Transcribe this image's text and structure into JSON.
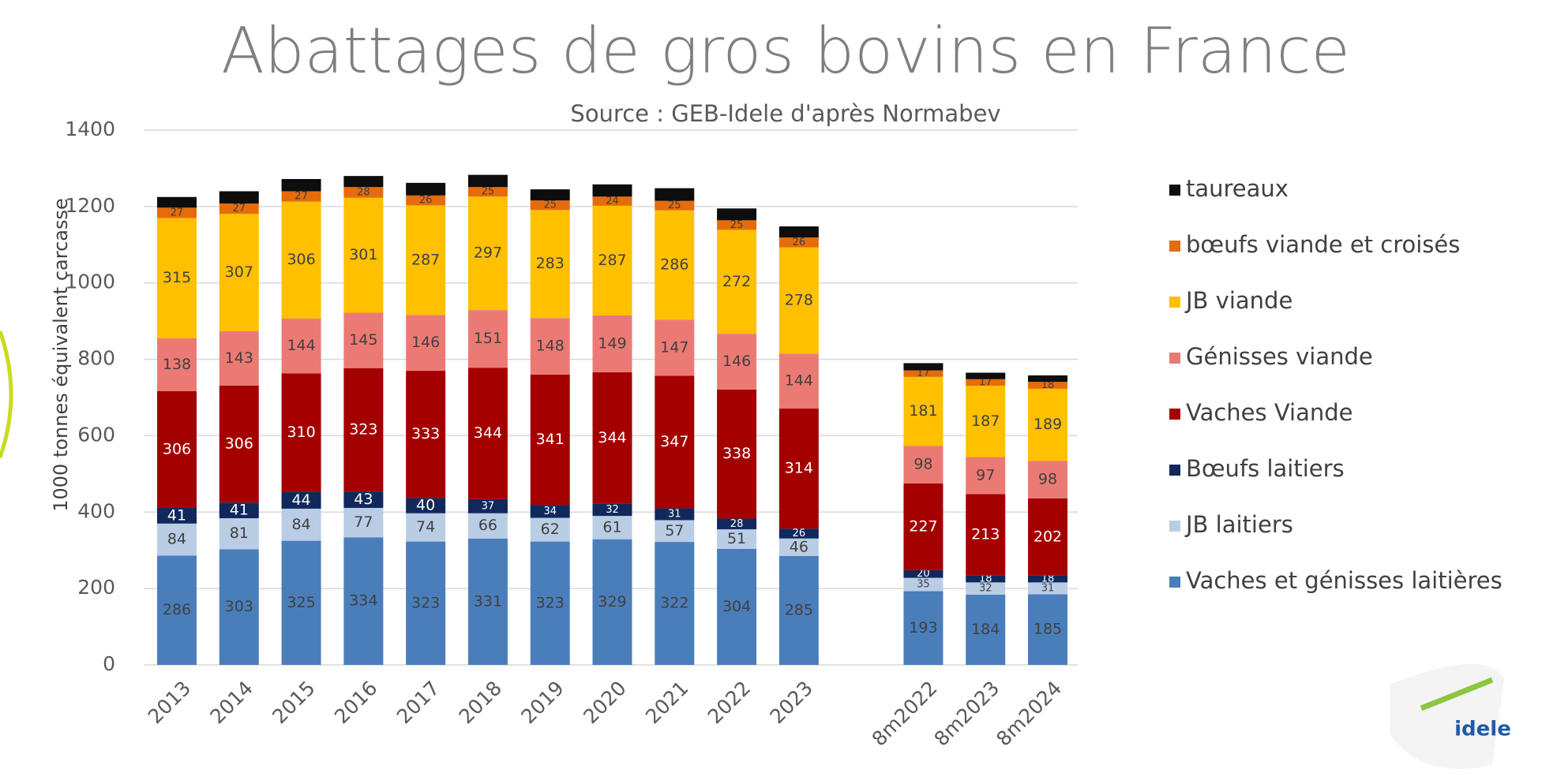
{
  "chart_data": {
    "type": "stacked_bar",
    "title": "Abattages de gros bovins en France",
    "subtitle": "Source : GEB-Idele d'après Normabev",
    "y_label": "1000 tonnes équivalent carcasse",
    "categories": [
      "2013",
      "2014",
      "2015",
      "2016",
      "2017",
      "2018",
      "2019",
      "2020",
      "2021",
      "2022",
      "2023",
      null,
      "8m2022",
      "8m2023",
      "8m2024"
    ],
    "series": [
      {
        "name": "Vaches et génisses laitières",
        "color": "#4a7ebb",
        "values": [
          286,
          303,
          325,
          334,
          323,
          331,
          323,
          329,
          322,
          304,
          285,
          null,
          193,
          184,
          185
        ]
      },
      {
        "name": "JB laitiers",
        "color": "#b9cde5",
        "values": [
          84,
          81,
          84,
          77,
          74,
          66,
          62,
          61,
          57,
          51,
          46,
          null,
          35,
          32,
          31
        ]
      },
      {
        "name": "Bœufs laitiers",
        "color": "#10285c",
        "values": [
          41,
          41,
          44,
          43,
          40,
          37,
          34,
          32,
          31,
          28,
          26,
          null,
          20,
          18,
          18
        ]
      },
      {
        "name": "Vaches Viande",
        "color": "#a50000",
        "values": [
          306,
          306,
          310,
          323,
          333,
          344,
          341,
          344,
          347,
          338,
          314,
          null,
          227,
          213,
          202
        ]
      },
      {
        "name": "Génisses viande",
        "color": "#ec7a74",
        "values": [
          138,
          143,
          144,
          145,
          146,
          151,
          148,
          149,
          147,
          146,
          144,
          null,
          98,
          97,
          98
        ]
      },
      {
        "name": "JB viande",
        "color": "#ffc000",
        "values": [
          315,
          307,
          306,
          301,
          287,
          297,
          283,
          287,
          286,
          272,
          278,
          null,
          181,
          187,
          189
        ]
      },
      {
        "name": "bœufs viande et croisés",
        "color": "#e46c0a",
        "values": [
          27,
          27,
          27,
          28,
          26,
          25,
          25,
          24,
          25,
          25,
          26,
          null,
          17,
          17,
          18
        ]
      },
      {
        "name": "taureaux",
        "color": "#0d0d0d",
        "show_labels": false,
        "values": [
          28,
          32,
          32,
          29,
          33,
          32,
          29,
          32,
          33,
          31,
          29,
          null,
          19,
          17,
          17
        ]
      }
    ],
    "ylim": [
      0,
      1400
    ],
    "yticks": [
      0,
      200,
      400,
      600,
      800,
      1000,
      1200,
      1400
    ],
    "grid": true,
    "legend": "right",
    "logo": "idele"
  }
}
